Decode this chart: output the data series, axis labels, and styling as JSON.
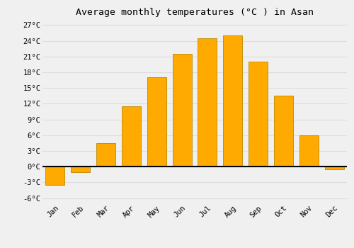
{
  "title": "Average monthly temperatures (°C ) in Asan",
  "months": [
    "Jan",
    "Feb",
    "Mar",
    "Apr",
    "May",
    "Jun",
    "Jul",
    "Aug",
    "Sep",
    "Oct",
    "Nov",
    "Dec"
  ],
  "values": [
    -3.5,
    -1.0,
    4.5,
    11.5,
    17.0,
    21.5,
    24.5,
    25.0,
    20.0,
    13.5,
    6.0,
    -0.5
  ],
  "bar_color": "#FFAA00",
  "bar_edge_color": "#BB8800",
  "background_color": "#F0F0F0",
  "grid_color": "#DDDDDD",
  "ylim": [
    -7,
    28
  ],
  "yticks": [
    -6,
    -3,
    0,
    3,
    6,
    9,
    12,
    15,
    18,
    21,
    24,
    27
  ],
  "ytick_labels": [
    "-6°C",
    "-3°C",
    "0°C",
    "3°C",
    "6°C",
    "9°C",
    "12°C",
    "15°C",
    "18°C",
    "21°C",
    "24°C",
    "27°C"
  ],
  "title_fontsize": 9.5,
  "tick_fontsize": 7.5,
  "font_family": "monospace",
  "bar_width": 0.75
}
